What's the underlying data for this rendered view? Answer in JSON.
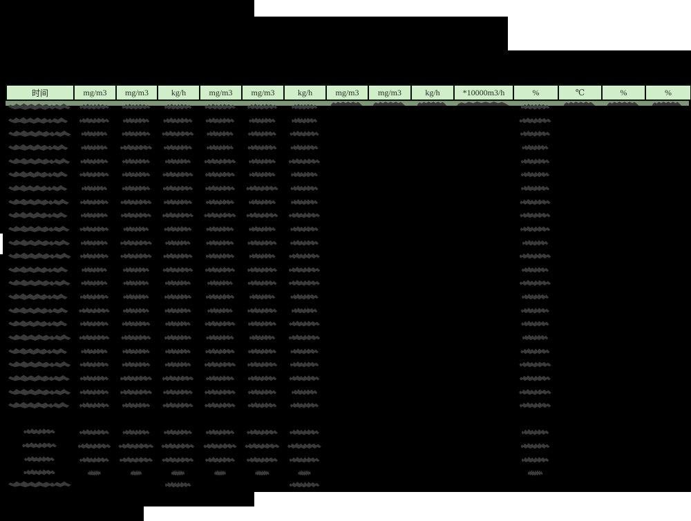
{
  "table": {
    "header_units": [
      "时间",
      "mg/m3",
      "mg/m3",
      "kg/h",
      "mg/m3",
      "mg/m3",
      "kg/h",
      "mg/m3",
      "mg/m3",
      "kg/h",
      "*10000m3/h",
      "%",
      "℃",
      "%",
      "%"
    ],
    "redacted": true,
    "data_row_count": 23,
    "summary_row_count": 5,
    "columns_with_values_in_all_rows": [
      0,
      1,
      2,
      3,
      4,
      5,
      6,
      11
    ],
    "columns_with_values_in_first_row_only": [
      7,
      8,
      9,
      10,
      12,
      13,
      14
    ],
    "last_summary_row_value_columns": [
      3,
      6
    ]
  },
  "colors": {
    "background": "#000000",
    "page_white": "#ffffff",
    "header_fill": "#cfeec9",
    "header_border": "#081008",
    "header_text": "#233023",
    "header_strip": "#7e9578",
    "redaction_blob": "#3a3a3a"
  }
}
